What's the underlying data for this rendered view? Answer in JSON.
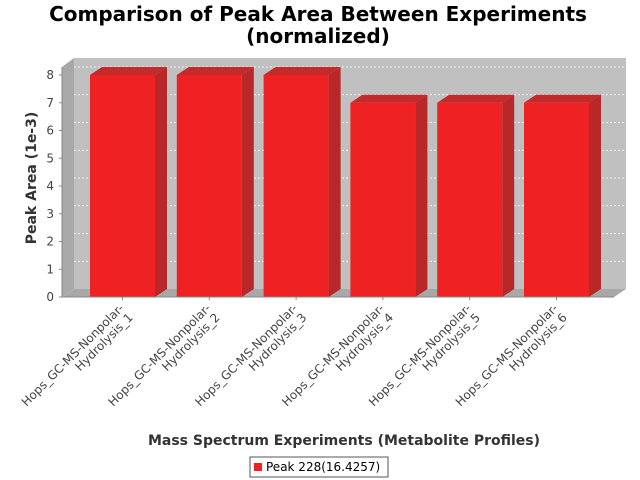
{
  "chart_data": {
    "type": "bar",
    "title": "Comparison of Peak Area Between Experiments",
    "subtitle": "(normalized)",
    "xlabel": "Mass Spectrum Experiments (Metabolite Profiles)",
    "ylabel": "Peak Area (1e-3)",
    "categories": [
      "Hops_GC-MS-Nonpolar-Hydrolysis_1",
      "Hops_GC-MS-Nonpolar-Hydrolysis_2",
      "Hops_GC-MS-Nonpolar-Hydrolysis_3",
      "Hops_GC-MS-Nonpolar-Hydrolysis_4",
      "Hops_GC-MS-Nonpolar-Hydrolysis_5",
      "Hops_GC-MS-Nonpolar-Hydrolysis_6"
    ],
    "category_lines": [
      [
        "Hops_GC-MS-Nonpolar-",
        "Hydrolysis_1"
      ],
      [
        "Hops_GC-MS-Nonpolar-",
        "Hydrolysis_2"
      ],
      [
        "Hops_GC-MS-Nonpolar-",
        "Hydrolysis_3"
      ],
      [
        "Hops_GC-MS-Nonpolar-",
        "Hydrolysis_4"
      ],
      [
        "Hops_GC-MS-Nonpolar-",
        "Hydrolysis_5"
      ],
      [
        "Hops_GC-MS-Nonpolar-",
        "Hydrolysis_6"
      ]
    ],
    "series": [
      {
        "name": "Peak 228(16.4257)",
        "values": [
          8,
          8,
          8,
          7,
          7,
          7
        ],
        "color": "#ee2222"
      }
    ],
    "ylim": [
      0,
      8
    ],
    "yticks": [
      0,
      1,
      2,
      3,
      4,
      5,
      6,
      7,
      8
    ],
    "grid": true,
    "legend_position": "bottom-center",
    "plot_background": "#c0c0c0"
  }
}
